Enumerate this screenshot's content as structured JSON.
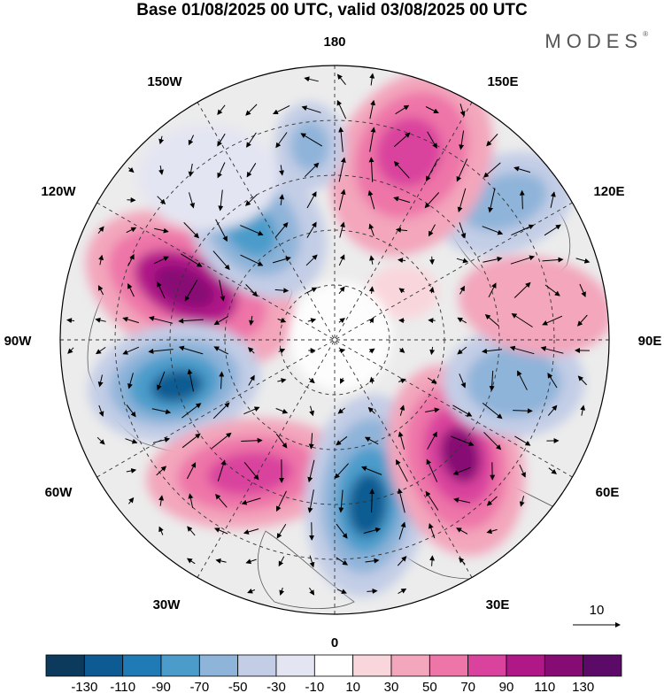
{
  "header": {
    "title": "Base 01/08/2025 00 UTC, valid 03/08/2025 00 UTC",
    "brand": "MODES"
  },
  "map": {
    "projection": "north polar stereographic",
    "longitude_labels": {
      "top": "180",
      "top_right": "150E",
      "right_upper": "120E",
      "right": "90E",
      "right_lower": "60E",
      "bottom_right": "30E",
      "bottom": "0",
      "bottom_left": "30W",
      "left_lower": "60W",
      "left": "90W",
      "left_upper": "120W",
      "top_left": "150W"
    },
    "vector_reference": "10",
    "colors": {
      "negative_strong": "#0d4e7c",
      "negative_weak": "#d6dbee",
      "positive_weak": "#f8d3db",
      "positive_strong": "#8a0a74"
    }
  },
  "colorbar": {
    "labels": [
      "-130",
      "-110",
      "-90",
      "-70",
      "-50",
      "-30",
      "-10",
      "10",
      "30",
      "50",
      "70",
      "90",
      "110",
      "130"
    ],
    "colors": [
      "#0b3a5c",
      "#0d5b92",
      "#1f7ab6",
      "#4c9ccb",
      "#8fb4d9",
      "#c3cde6",
      "#e4e5f2",
      "#ffffff",
      "#f9d6dc",
      "#f3a6bc",
      "#ee75a8",
      "#d9439d",
      "#b01888",
      "#870b74",
      "#5c0a67"
    ]
  }
}
